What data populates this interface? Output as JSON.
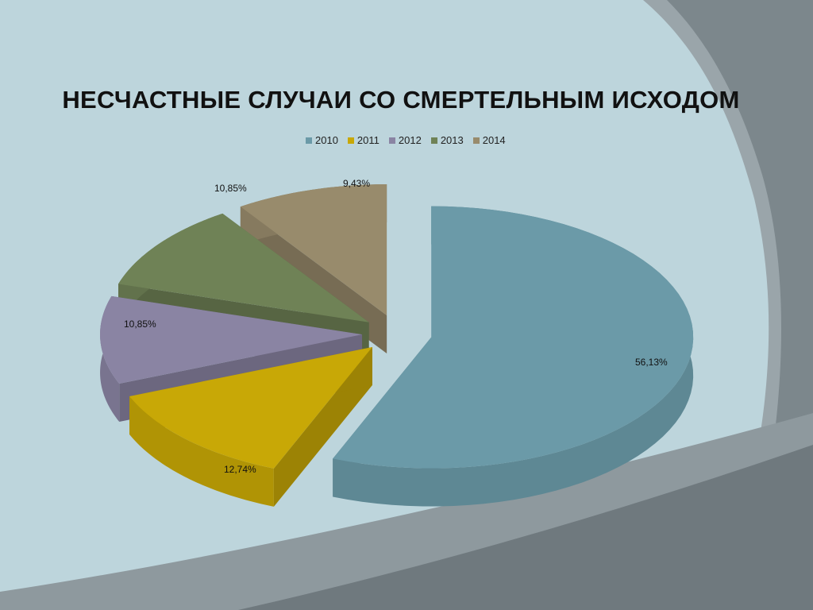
{
  "chart_data": {
    "type": "pie",
    "title": "НЕСЧАСТНЫЕ СЛУЧАИ СО СМЕРТЕЛЬНЫМ ИСХОДОМ",
    "categories": [
      "2010",
      "2011",
      "2012",
      "2013",
      "2014"
    ],
    "values": [
      56.13,
      12.74,
      10.85,
      10.85,
      9.43
    ],
    "labels": [
      "56,13%",
      "12,74%",
      "10,85%",
      "10,85%",
      "9,43%"
    ],
    "colors": [
      "#6b9aa8",
      "#c8a806",
      "#8a84a3",
      "#6f8256",
      "#988b6c"
    ],
    "legend_position": "top",
    "style": "3d-exploded"
  }
}
